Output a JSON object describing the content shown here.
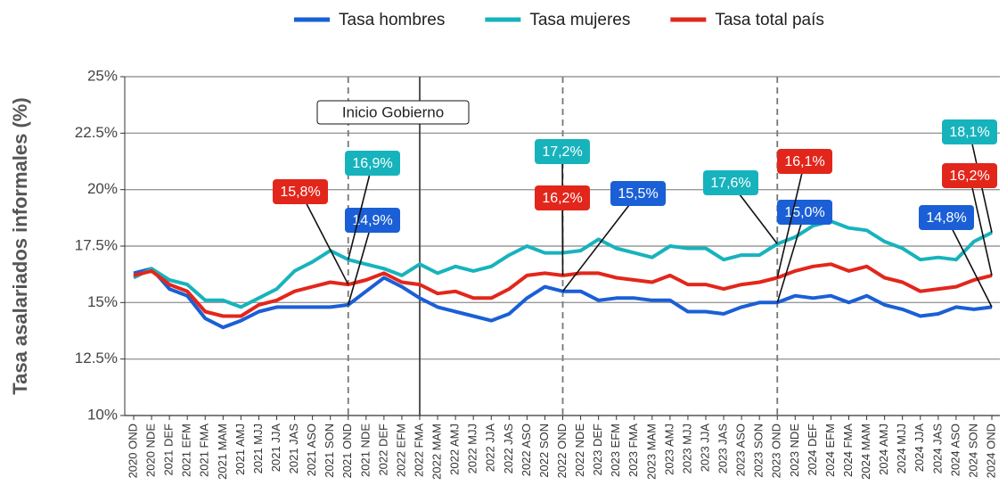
{
  "chart_data": {
    "type": "line",
    "y_label": "Tasa asalariados informales (%)",
    "categories": [
      "2020 OND",
      "2020 NDE",
      "2021 DEF",
      "2021 EFM",
      "2021 FMA",
      "2021 MAM",
      "2021 AMJ",
      "2021 MJJ",
      "2021 JJA",
      "2021 JAS",
      "2021 ASO",
      "2021 SON",
      "2021 OND",
      "2021 NDE",
      "2022 DEF",
      "2022 EFM",
      "2022 FMA",
      "2022 MAM",
      "2022 AMJ",
      "2022 MJJ",
      "2022 JJA",
      "2022 JAS",
      "2022 ASO",
      "2022 SON",
      "2022 OND",
      "2022 NDE",
      "2023 DEF",
      "2023 EFM",
      "2023 FMA",
      "2023 MAM",
      "2023 AMJ",
      "2023 MJJ",
      "2023 JJA",
      "2023 JAS",
      "2023 ASO",
      "2023 SON",
      "2023 OND",
      "2023 NDE",
      "2024 DEF",
      "2024 EFM",
      "2024 FMA",
      "2024 MAM",
      "2024 AMJ",
      "2024 MJJ",
      "2024 JJA",
      "2024 JAS",
      "2024 ASO",
      "2024 SON",
      "2024 OND"
    ],
    "series": [
      {
        "name": "Tasa hombres",
        "color": "#1a5fd6",
        "values": [
          16.3,
          16.5,
          15.6,
          15.3,
          14.3,
          13.9,
          14.2,
          14.6,
          14.8,
          14.8,
          14.8,
          14.8,
          14.9,
          15.5,
          16.1,
          15.7,
          15.2,
          14.8,
          14.6,
          14.4,
          14.2,
          14.5,
          15.2,
          15.7,
          15.5,
          15.5,
          15.1,
          15.2,
          15.2,
          15.1,
          15.1,
          14.6,
          14.6,
          14.5,
          14.8,
          15.0,
          15.0,
          15.3,
          15.2,
          15.3,
          15.0,
          15.3,
          14.9,
          14.7,
          14.4,
          14.5,
          14.8,
          14.7,
          14.8
        ],
        "value_labels": [
          null,
          null,
          null,
          null,
          null,
          null,
          null,
          null,
          null,
          null,
          null,
          null,
          "14,9%",
          null,
          null,
          null,
          null,
          null,
          null,
          null,
          null,
          null,
          null,
          null,
          "15,5%",
          null,
          null,
          null,
          null,
          null,
          null,
          null,
          null,
          null,
          null,
          null,
          "15,0%",
          null,
          null,
          null,
          null,
          null,
          null,
          null,
          null,
          null,
          null,
          null,
          "14,8%"
        ]
      },
      {
        "name": "Tasa mujeres",
        "color": "#17b3bd",
        "values": [
          16.1,
          16.5,
          16.0,
          15.8,
          15.1,
          15.1,
          14.8,
          15.2,
          15.6,
          16.4,
          16.8,
          17.3,
          16.9,
          16.7,
          16.5,
          16.2,
          16.7,
          16.3,
          16.6,
          16.4,
          16.6,
          17.1,
          17.5,
          17.2,
          17.2,
          17.3,
          17.8,
          17.4,
          17.2,
          17.0,
          17.5,
          17.4,
          17.4,
          16.9,
          17.1,
          17.1,
          17.6,
          17.9,
          18.4,
          18.6,
          18.3,
          18.2,
          17.7,
          17.4,
          16.9,
          17.0,
          16.9,
          17.7,
          18.1
        ],
        "value_labels": [
          null,
          null,
          null,
          null,
          null,
          null,
          null,
          null,
          null,
          null,
          null,
          null,
          "16,9%",
          null,
          null,
          null,
          null,
          null,
          null,
          null,
          null,
          null,
          null,
          null,
          "17,2%",
          null,
          null,
          null,
          null,
          null,
          null,
          null,
          null,
          null,
          null,
          null,
          "17,6%",
          null,
          null,
          null,
          null,
          null,
          null,
          null,
          null,
          null,
          null,
          null,
          "18,1%"
        ]
      },
      {
        "name": "Tasa total país",
        "color": "#e3261b",
        "values": [
          16.2,
          16.4,
          15.8,
          15.5,
          14.6,
          14.4,
          14.4,
          14.9,
          15.1,
          15.5,
          15.7,
          15.9,
          15.8,
          16.0,
          16.3,
          15.9,
          15.8,
          15.4,
          15.5,
          15.2,
          15.2,
          15.6,
          16.2,
          16.3,
          16.2,
          16.3,
          16.3,
          16.1,
          16.0,
          15.9,
          16.2,
          15.8,
          15.8,
          15.6,
          15.8,
          15.9,
          16.1,
          16.4,
          16.6,
          16.7,
          16.4,
          16.6,
          16.1,
          15.9,
          15.5,
          15.6,
          15.7,
          16.0,
          16.2
        ],
        "value_labels": [
          null,
          null,
          null,
          null,
          null,
          null,
          null,
          null,
          null,
          null,
          null,
          null,
          "15,8%",
          null,
          null,
          null,
          null,
          null,
          null,
          null,
          null,
          null,
          null,
          null,
          "16,2%",
          null,
          null,
          null,
          null,
          null,
          null,
          null,
          null,
          null,
          null,
          null,
          "16,1%",
          null,
          null,
          null,
          null,
          null,
          null,
          null,
          null,
          null,
          null,
          null,
          "16,2%"
        ]
      }
    ],
    "ylim": [
      10,
      25
    ],
    "yticks": [
      {
        "value": 10,
        "label": "10%"
      },
      {
        "value": 12.5,
        "label": "12.5%"
      },
      {
        "value": 15,
        "label": "15%"
      },
      {
        "value": 17.5,
        "label": "17.5%"
      },
      {
        "value": 20,
        "label": "20%"
      },
      {
        "value": 22.5,
        "label": "22.5%"
      },
      {
        "value": 25,
        "label": "25%"
      }
    ],
    "grid": true,
    "legend": "top",
    "reference_lines": [
      "2021 OND",
      "2022 OND",
      "2023 OND"
    ],
    "annotations": [
      {
        "text": "Inicio Gobierno",
        "x": "2022 FMA"
      }
    ]
  }
}
